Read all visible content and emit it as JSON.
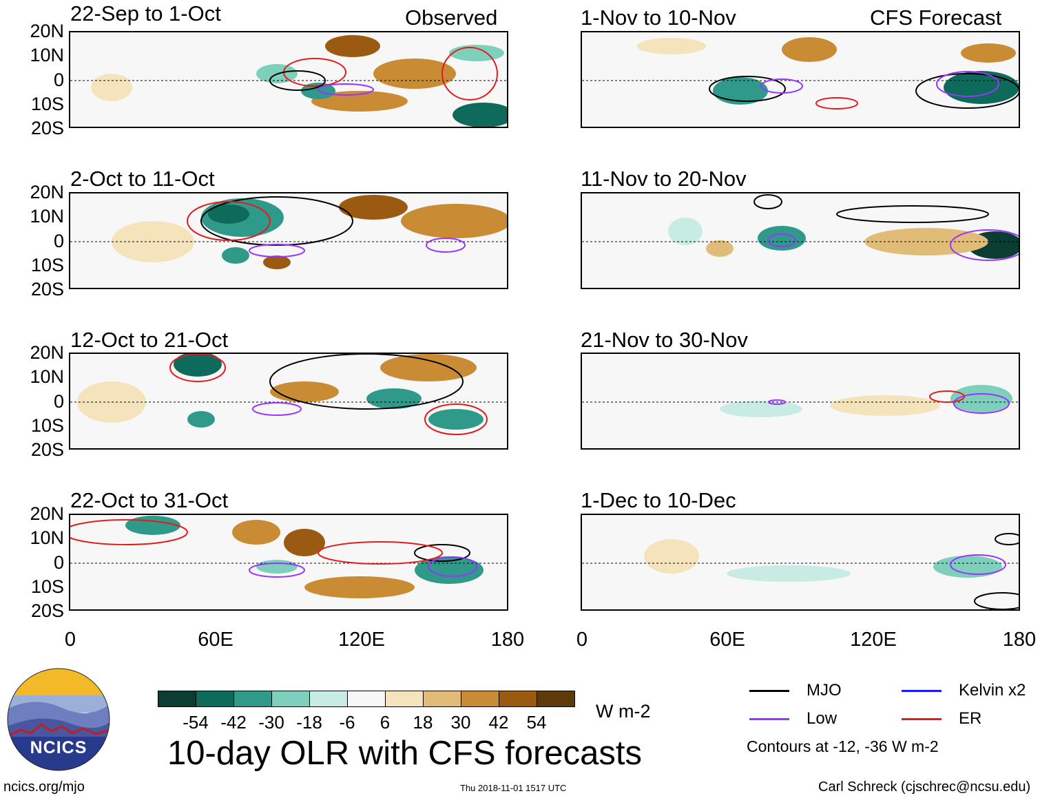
{
  "title": "10-day OLR with CFS forecasts",
  "header_left": "Observed",
  "header_right": "CFS Forecast",
  "lat_labels": [
    "20N",
    "10N",
    "0",
    "10S",
    "20S"
  ],
  "lon_labels": [
    "0",
    "60E",
    "120E",
    "180"
  ],
  "panels_left": [
    {
      "period": "22-Sep to 1-Oct"
    },
    {
      "period": "2-Oct to 11-Oct"
    },
    {
      "period": "12-Oct to 21-Oct"
    },
    {
      "period": "22-Oct to 31-Oct"
    }
  ],
  "panels_right": [
    {
      "period": "1-Nov to 10-Nov"
    },
    {
      "period": "11-Nov to 20-Nov"
    },
    {
      "period": "21-Nov to 30-Nov"
    },
    {
      "period": "1-Dec to 10-Dec"
    }
  ],
  "colorbar": {
    "units": "W m-2",
    "levels": [
      "-54",
      "-42",
      "-30",
      "-18",
      "-6",
      "6",
      "18",
      "30",
      "42",
      "54"
    ],
    "colors": [
      "#0b3d32",
      "#0e6b5c",
      "#2f9a8a",
      "#7fcfbd",
      "#c8ece3",
      "#f7f7f7",
      "#f5e3bb",
      "#e1bc78",
      "#c98b33",
      "#9a5a12",
      "#5e3a0a"
    ]
  },
  "legend": {
    "items": [
      {
        "label": "MJO",
        "color": "#000000"
      },
      {
        "label": "Kelvin x2",
        "color": "#1a1aff"
      },
      {
        "label": "Low",
        "color": "#9933ff"
      },
      {
        "label": "ER",
        "color": "#e41a1c"
      }
    ],
    "note": "Contours at -12, -36 W m-2"
  },
  "footer": {
    "left": "ncics.org/mjo",
    "center": "Thu 2018-11-01 1517 UTC",
    "right": "Carl Schreck (cjschrec@ncsu.edu)"
  },
  "logo_text": "NCICS"
}
